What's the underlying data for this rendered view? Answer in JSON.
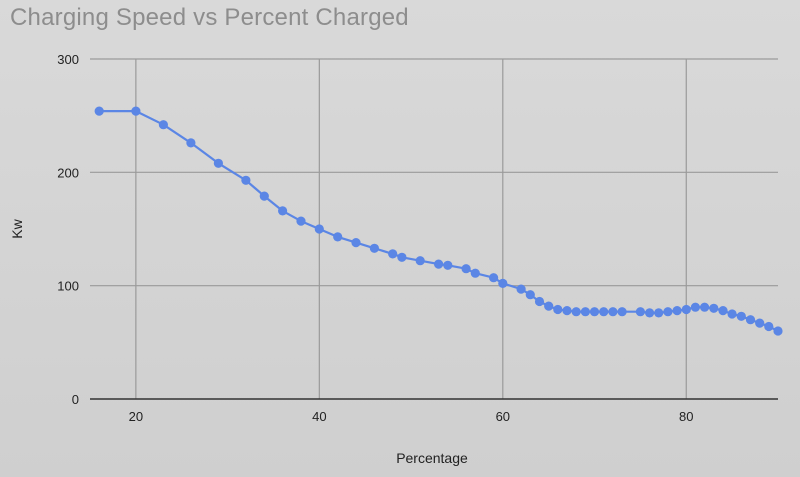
{
  "chart_data": {
    "type": "line",
    "title": "Charging Speed vs Percent Charged",
    "xlabel": "Percentage",
    "ylabel": "Kw",
    "xlim": [
      15,
      90
    ],
    "ylim": [
      0,
      300
    ],
    "xticks": [
      20,
      40,
      60,
      80
    ],
    "yticks": [
      0,
      100,
      200,
      300
    ],
    "grid": true,
    "legend": "none",
    "colors": {
      "line": "#5b86e5",
      "grid": "#9a9a9a",
      "axis": "#333333"
    },
    "series": [
      {
        "x": [
          16,
          20,
          23,
          26,
          29,
          32,
          34,
          36,
          38,
          40,
          42,
          44,
          46,
          48,
          49,
          51,
          53,
          54,
          56,
          57,
          59,
          60,
          62,
          63,
          64,
          65,
          66,
          67,
          68,
          69,
          70,
          71,
          72,
          73,
          75,
          76,
          77,
          78,
          79,
          80,
          81,
          82,
          83,
          84,
          85,
          86,
          87,
          88,
          89,
          90
        ],
        "y": [
          254,
          254,
          242,
          226,
          208,
          193,
          179,
          166,
          157,
          150,
          143,
          138,
          133,
          128,
          125,
          122,
          119,
          118,
          115,
          111,
          107,
          102,
          97,
          92,
          86,
          82,
          79,
          78,
          77,
          77,
          77,
          77,
          77,
          77,
          77,
          76,
          76,
          77,
          78,
          79,
          81,
          81,
          80,
          78,
          75,
          73,
          70,
          67,
          64,
          60
        ]
      }
    ]
  }
}
